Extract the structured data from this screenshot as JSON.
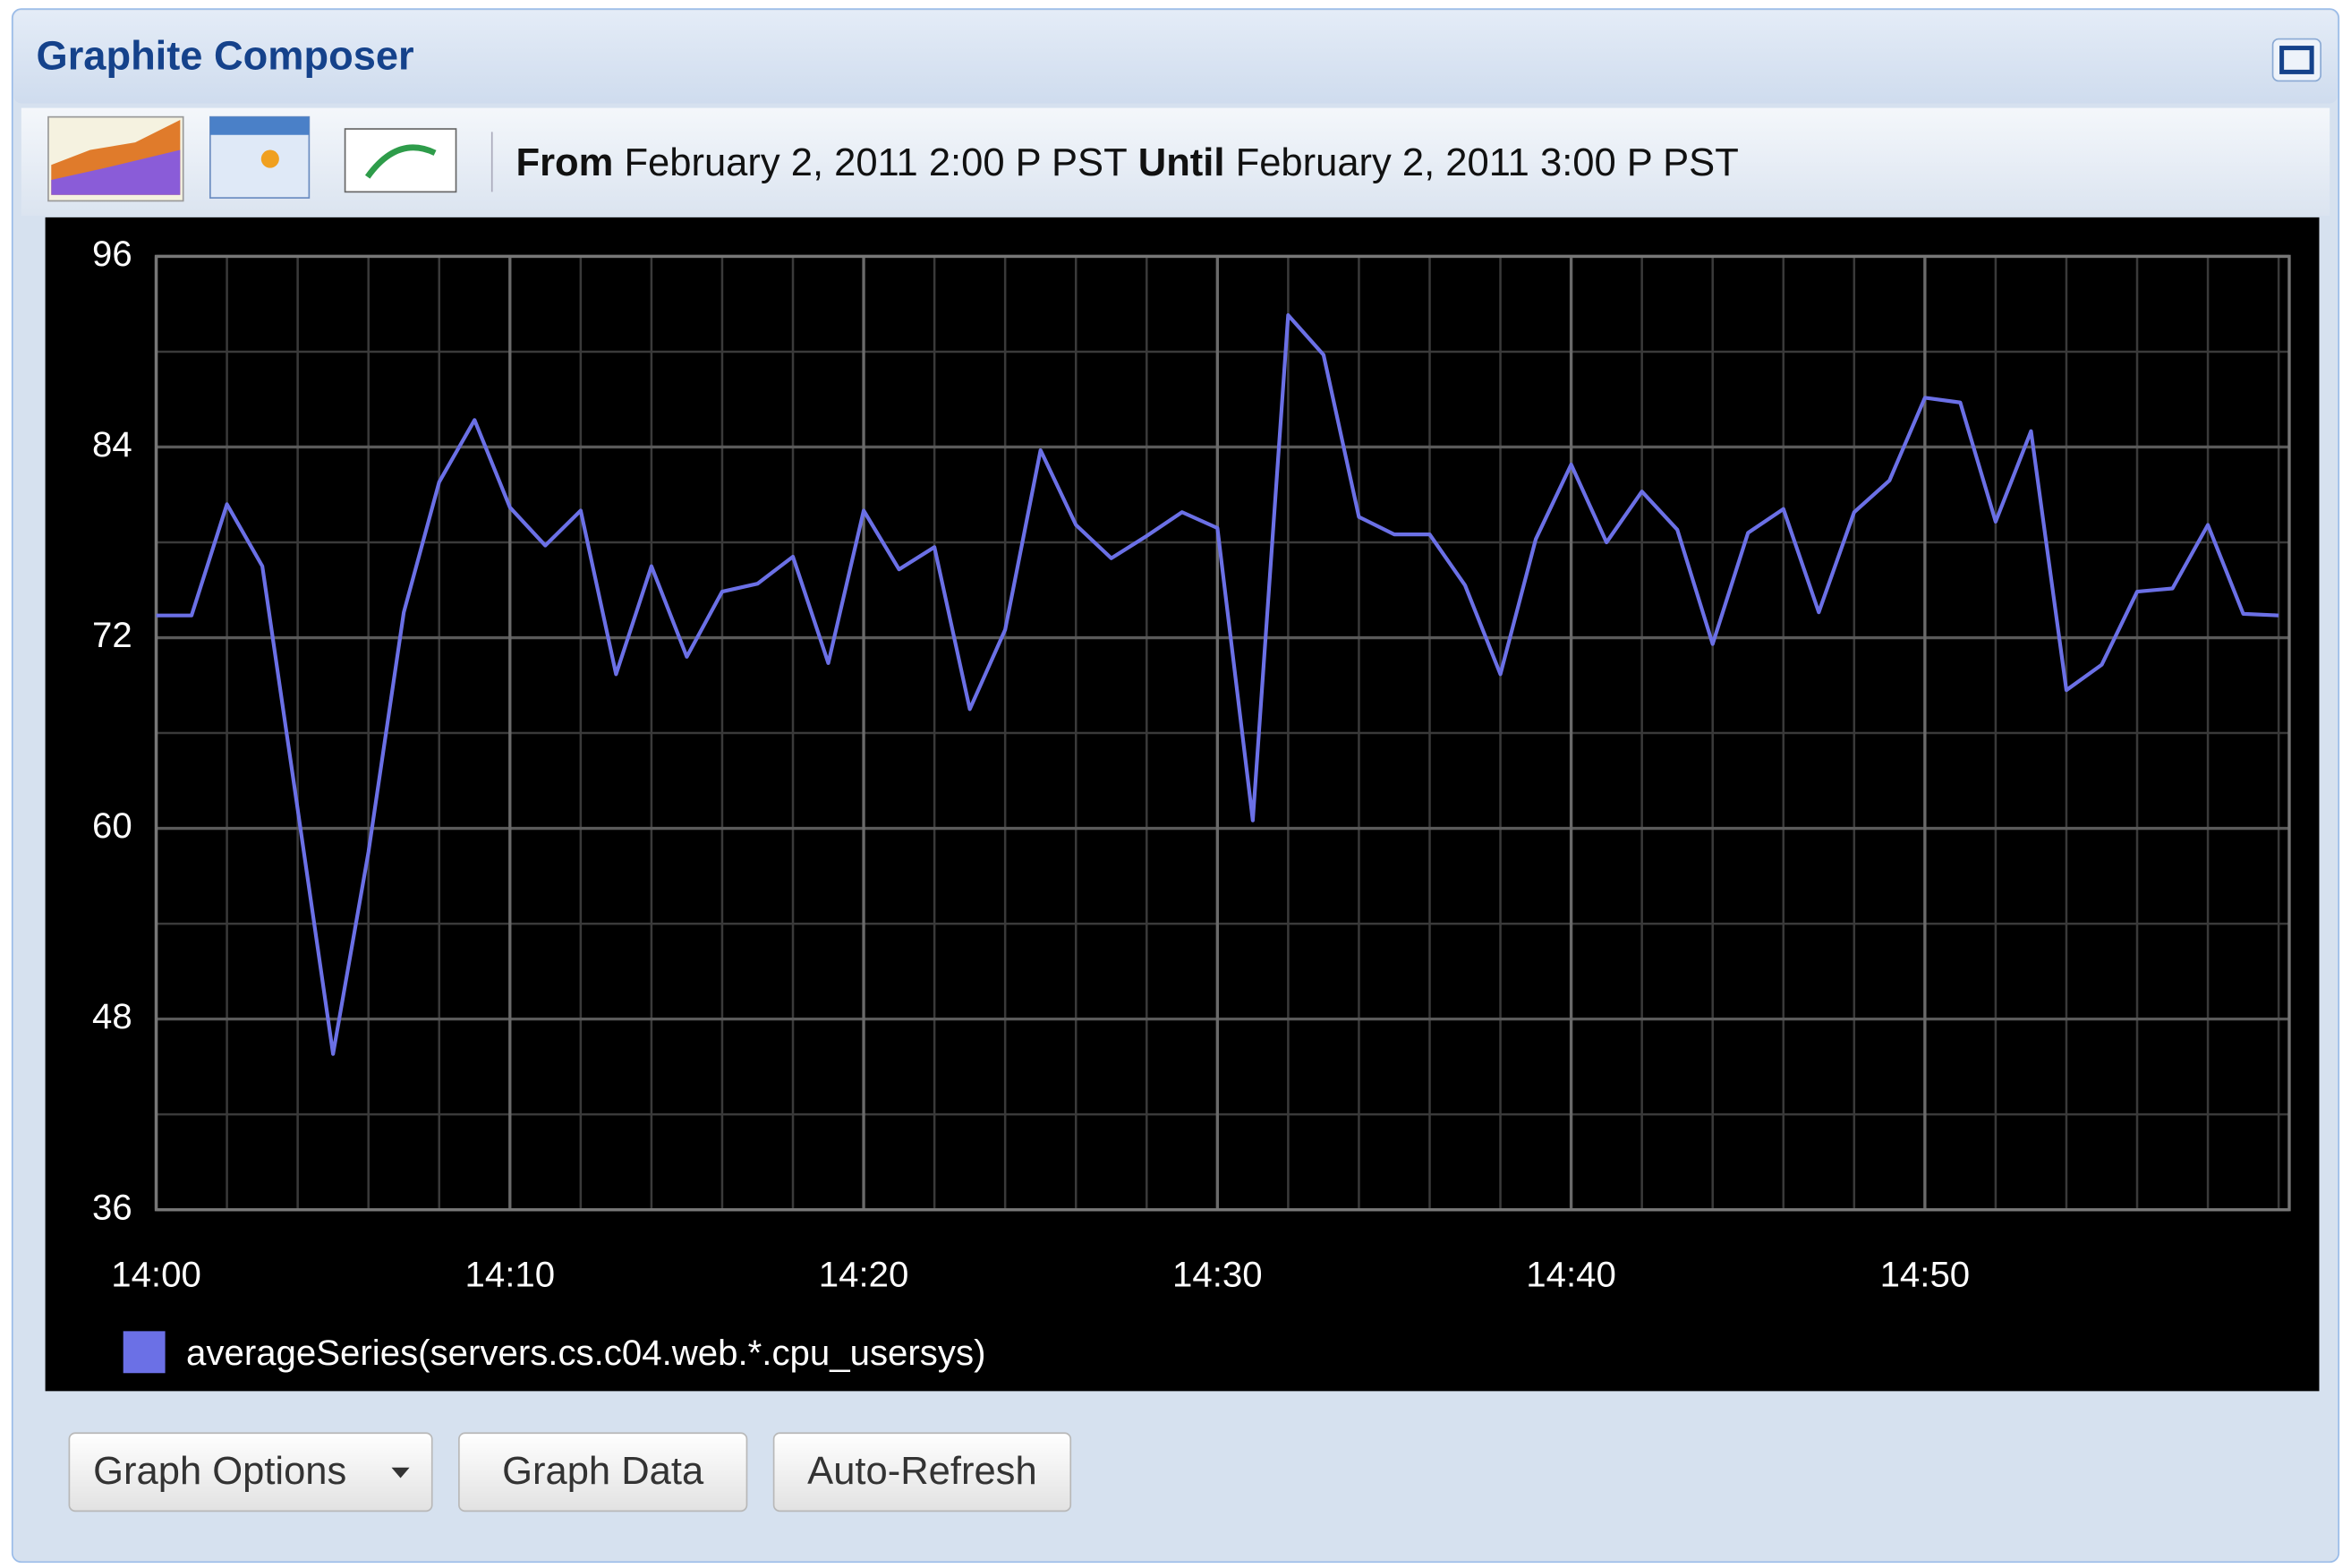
{
  "header": {
    "title": "Graphite Composer"
  },
  "toolbar": {
    "from_label": "From",
    "from": "February 2, 2011 2:00 P PST",
    "until_label": "Until",
    "until": "February 2, 2011 3:00 P PST"
  },
  "chart_data": {
    "type": "line",
    "x": [
      "14:00",
      "14:01",
      "14:02",
      "14:03",
      "14:04",
      "14:05",
      "14:06",
      "14:07",
      "14:08",
      "14:09",
      "14:10",
      "14:11",
      "14:12",
      "14:13",
      "14:14",
      "14:15",
      "14:16",
      "14:17",
      "14:18",
      "14:19",
      "14:20",
      "14:21",
      "14:22",
      "14:23",
      "14:24",
      "14:25",
      "14:26",
      "14:27",
      "14:28",
      "14:29",
      "14:30",
      "14:31",
      "14:32",
      "14:33",
      "14:34",
      "14:35",
      "14:36",
      "14:37",
      "14:38",
      "14:39",
      "14:40",
      "14:41",
      "14:42",
      "14:43",
      "14:44",
      "14:45",
      "14:46",
      "14:47",
      "14:48",
      "14:49",
      "14:50",
      "14:51",
      "14:52",
      "14:53",
      "14:54",
      "14:55",
      "14:56",
      "14:57",
      "14:58",
      "14:59",
      "15:00"
    ],
    "series": [
      {
        "name": "averageSeries(servers.cs.c04.web.*.cpu_usersys)",
        "color": "#6b70e6",
        "values": [
          73.4,
          73.4,
          80.4,
          76.5,
          61.2,
          45.8,
          58.5,
          73.6,
          81.8,
          85.7,
          80.2,
          77.8,
          80.0,
          69.7,
          76.5,
          70.8,
          74.9,
          75.4,
          77.1,
          70.4,
          80.0,
          76.3,
          77.7,
          67.5,
          72.5,
          83.8,
          79.1,
          77.0,
          78.4,
          79.9,
          78.9,
          60.5,
          92.3,
          89.8,
          79.6,
          78.5,
          78.5,
          75.3,
          69.7,
          78.2,
          82.9,
          78.0,
          81.2,
          78.8,
          71.6,
          78.6,
          80.1,
          73.6,
          79.9,
          81.9,
          87.1,
          86.8,
          79.3,
          85.0,
          68.7,
          70.3,
          74.9,
          75.1,
          79.1,
          73.5,
          73.4
        ]
      }
    ],
    "ylim": [
      36,
      96
    ],
    "yticks": [
      36,
      48,
      60,
      72,
      84,
      96
    ],
    "xticks": [
      "14:00",
      "14:10",
      "14:20",
      "14:30",
      "14:40",
      "14:50"
    ],
    "grid": true,
    "background": "#000000",
    "legend": "bottom-left"
  },
  "buttons": [
    "Graph Options",
    "Graph Data",
    "Auto-Refresh"
  ]
}
